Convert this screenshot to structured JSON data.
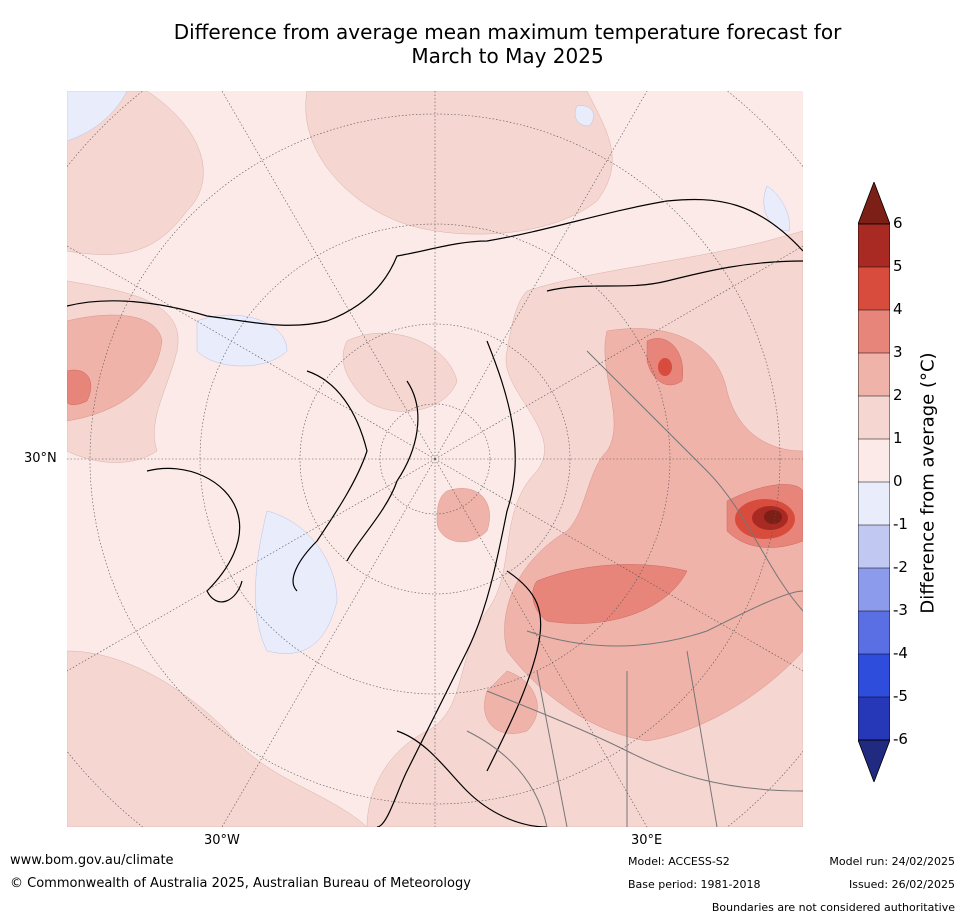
{
  "title_line1": "Difference from average mean maximum temperature forecast for",
  "title_line2": "March to May 2025",
  "axis": {
    "lat_label": "30°N",
    "lon_label_w": "30°W",
    "lon_label_e": "30°E"
  },
  "legend": {
    "title": "Difference from average (°C)",
    "ticks": [
      "6",
      "5",
      "4",
      "3",
      "2",
      "1",
      "0",
      "-1",
      "-2",
      "-3",
      "-4",
      "-5",
      "-6"
    ],
    "colors": {
      "gt6": "#7b1f17",
      "5to6": "#a82a22",
      "4to5": "#d84c3e",
      "3to4": "#e8857a",
      "2to3": "#efb3aa",
      "1to2": "#f5d6d1",
      "0to1": "#fbeae7",
      "m1to0": "#e8ecfb",
      "m2tom1": "#c1c9f3",
      "m3tom2": "#8d9bec",
      "m4tom3": "#5a6fe4",
      "m5tom4": "#2f4ddd",
      "m6tom5": "#2638b8",
      "ltm6": "#1f2a80"
    }
  },
  "footer": {
    "url": "www.bom.gov.au/climate",
    "copyright": "© Commonwealth of Australia 2025, Australian Bureau of Meteorology",
    "model": "Model: ACCESS-S2",
    "base_period": "Base period: 1981-2018",
    "model_run": "Model run: 24/02/2025",
    "issued": "Issued: 26/02/2025",
    "disclaimer": "Boundaries are not considered authoritative"
  }
}
